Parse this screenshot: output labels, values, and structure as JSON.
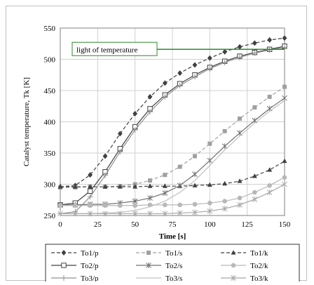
{
  "chart_data": {
    "type": "line",
    "title": "",
    "xlabel": "Time [s]",
    "ylabel": "Catalyst temperature, Tk [K]",
    "xlim": [
      0,
      150
    ],
    "ylim": [
      250,
      550
    ],
    "xticks": [
      0,
      25,
      50,
      75,
      100,
      125,
      150
    ],
    "yticks": [
      250,
      300,
      350,
      400,
      450,
      500,
      550
    ],
    "grid": true,
    "legend_position": "bottom",
    "x": [
      0,
      10,
      20,
      30,
      40,
      50,
      60,
      70,
      80,
      90,
      100,
      110,
      120,
      130,
      140,
      150
    ],
    "annotation": {
      "label": "light of temperature",
      "value": 516,
      "color": "#2e8b2e"
    },
    "series": [
      {
        "name": "To1/p",
        "color": "#404040",
        "dash": "5,3",
        "marker": "diamond",
        "values": [
          296,
          298,
          315,
          345,
          381,
          413,
          440,
          462,
          478,
          491,
          502,
          512,
          520,
          526,
          531,
          534
        ]
      },
      {
        "name": "To1/s",
        "color": "#a0a0a0",
        "dash": "5,3",
        "marker": "square",
        "values": [
          295,
          295,
          296,
          296,
          297,
          300,
          306,
          315,
          328,
          345,
          365,
          385,
          405,
          423,
          440,
          456
        ]
      },
      {
        "name": "To1/k",
        "color": "#404040",
        "dash": "5,3",
        "marker": "triangle",
        "values": [
          296,
          296,
          296,
          296,
          296,
          296,
          297,
          297,
          297,
          298,
          299,
          301,
          305,
          313,
          323,
          337
        ]
      },
      {
        "name": "To2/p",
        "color": "#404040",
        "dash": "",
        "marker": "open-square",
        "values": [
          267,
          270,
          289,
          320,
          357,
          392,
          421,
          443,
          461,
          475,
          487,
          497,
          505,
          511,
          516,
          521
        ]
      },
      {
        "name": "To2/s",
        "color": "#707070",
        "dash": "",
        "marker": "asterisk",
        "values": [
          267,
          267,
          268,
          268,
          270,
          273,
          278,
          286,
          298,
          316,
          338,
          361,
          382,
          402,
          421,
          438
        ]
      },
      {
        "name": "To2/k",
        "color": "#b8b8b8",
        "dash": "",
        "marker": "circle",
        "values": [
          266,
          266,
          266,
          266,
          266,
          266,
          267,
          267,
          267,
          268,
          270,
          273,
          278,
          287,
          298,
          311
        ]
      },
      {
        "name": "To3/p",
        "color": "#909090",
        "dash": "",
        "marker": "plus",
        "values": [
          253,
          256,
          280,
          314,
          352,
          387,
          416,
          440,
          458,
          472,
          485,
          495,
          503,
          510,
          515,
          519
        ]
      },
      {
        "name": "To3/s",
        "color": "#c0c0c0",
        "dash": "",
        "marker": "none",
        "values": [
          253,
          253,
          253,
          254,
          255,
          258,
          264,
          273,
          287,
          306,
          330,
          355,
          377,
          398,
          417,
          434
        ]
      },
      {
        "name": "To3/k",
        "color": "#a8a8a8",
        "dash": "",
        "marker": "asterisk",
        "values": [
          253,
          253,
          253,
          253,
          253,
          253,
          253,
          253,
          254,
          255,
          257,
          261,
          267,
          276,
          287,
          300
        ]
      }
    ]
  }
}
